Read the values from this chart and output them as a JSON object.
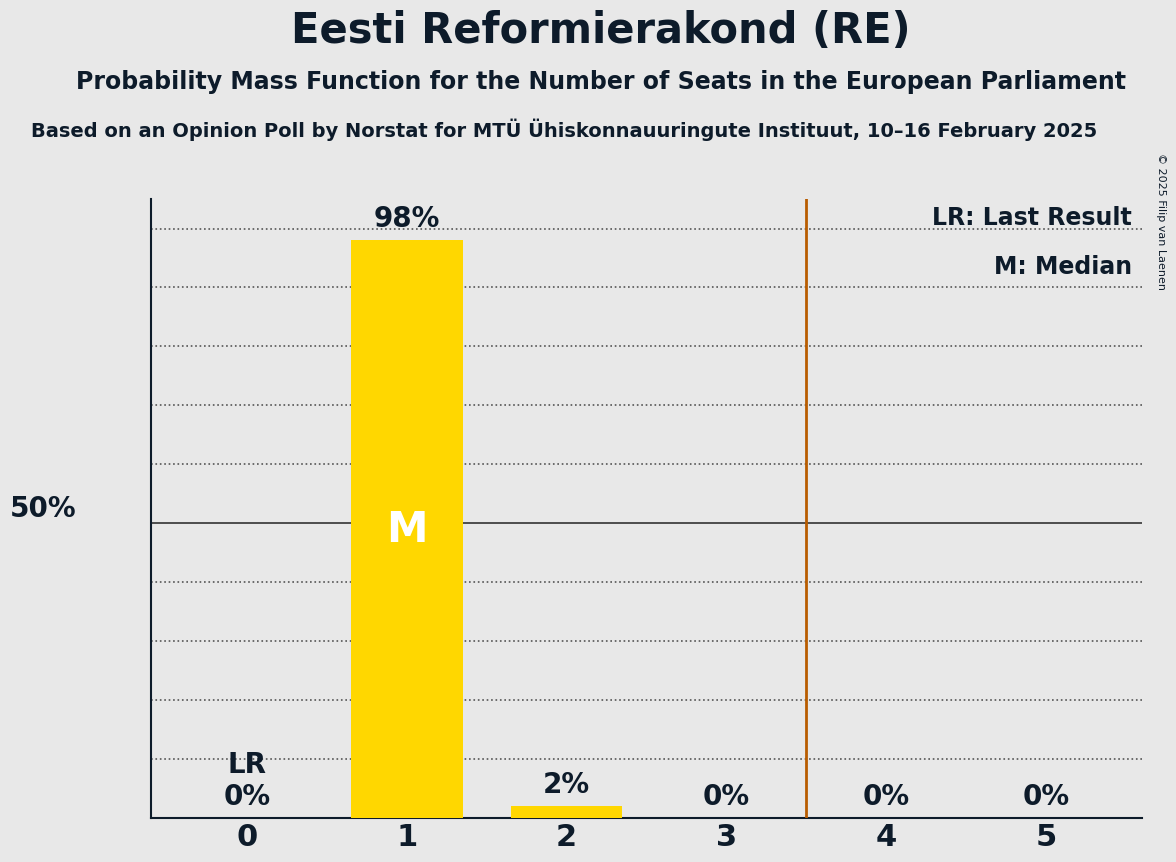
{
  "title": "Eesti Reformierakond (RE)",
  "subtitle": "Probability Mass Function for the Number of Seats in the European Parliament",
  "subsubtitle": "Based on an Opinion Poll by Norstat for MTÜ Ühiskonnauuringute Instituut, 10–16 February 2025",
  "copyright": "© 2025 Filip van Laenen",
  "seats": [
    0,
    1,
    2,
    3,
    4,
    5
  ],
  "probabilities": [
    0.0,
    0.98,
    0.02,
    0.0,
    0.0,
    0.0
  ],
  "bar_color": "#FFD700",
  "median": 1,
  "last_result": 0,
  "vline_x": 3.5,
  "vline_color": "#B85C00",
  "background_color": "#E8E8E8",
  "ylim": [
    0,
    1.05
  ],
  "yticks": [
    0.0,
    0.1,
    0.2,
    0.3,
    0.4,
    0.5,
    0.6,
    0.7,
    0.8,
    0.9,
    1.0
  ],
  "legend_lr": "LR: Last Result",
  "legend_m": "M: Median",
  "title_fontsize": 30,
  "subtitle_fontsize": 17,
  "subsubtitle_fontsize": 14,
  "bar_label_fontsize": 20,
  "tick_fontsize": 20,
  "legend_fontsize": 17,
  "median_label": "M",
  "lr_label": "LR",
  "fifty_pct_label": "50%",
  "copyright_fontsize": 8
}
